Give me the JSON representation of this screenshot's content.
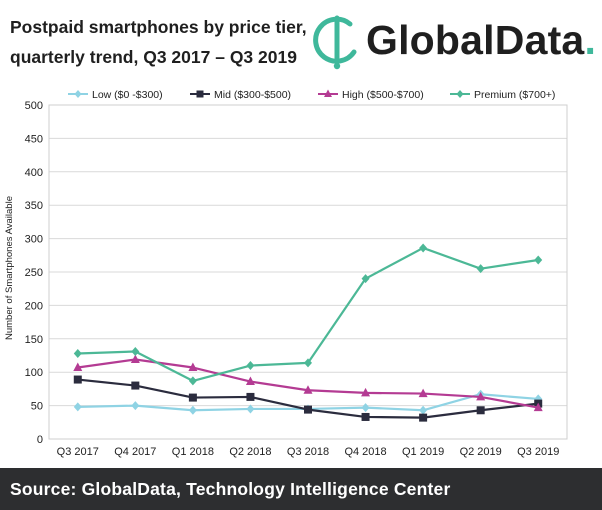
{
  "header": {
    "title_line1": "Postpaid smartphones by price tier,",
    "title_line2": "quarterly trend, Q3 2017 – Q3 2019"
  },
  "logo": {
    "name": "GlobalData",
    "dot": ".",
    "accent": "#3fb89b",
    "icon": "globaldata-logo-icon"
  },
  "footer": {
    "source": "Source:  GlobalData, Technology Intelligence Center"
  },
  "chart_data": {
    "type": "line",
    "title": "",
    "xlabel": "",
    "ylabel": "Number of Smartphones Available",
    "categories": [
      "Q3 2017",
      "Q4 2017",
      "Q1 2018",
      "Q2 2018",
      "Q3 2018",
      "Q4 2018",
      "Q1 2019",
      "Q2 2019",
      "Q3 2019"
    ],
    "ylim": [
      0,
      500
    ],
    "yticks": [
      0,
      50,
      100,
      150,
      200,
      250,
      300,
      350,
      400,
      450,
      500
    ],
    "grid": "horizontal",
    "legend": "top",
    "series": [
      {
        "name": "Low ($0 -$300)",
        "color": "#8fd3e4",
        "marker": "diamond",
        "values": [
          48,
          50,
          43,
          45,
          45,
          47,
          43,
          67,
          60
        ]
      },
      {
        "name": "Mid ($300-$500)",
        "color": "#2b2c3e",
        "marker": "square",
        "values": [
          89,
          80,
          62,
          63,
          44,
          33,
          32,
          43,
          53
        ]
      },
      {
        "name": "High ($500-$700)",
        "color": "#b43b93",
        "marker": "triangle",
        "values": [
          107,
          119,
          107,
          86,
          73,
          69,
          68,
          63,
          47
        ]
      },
      {
        "name": "Premium ($700+)",
        "color": "#4cb896",
        "marker": "diamond",
        "values": [
          128,
          131,
          87,
          110,
          114,
          240,
          286,
          255,
          268
        ]
      }
    ]
  }
}
